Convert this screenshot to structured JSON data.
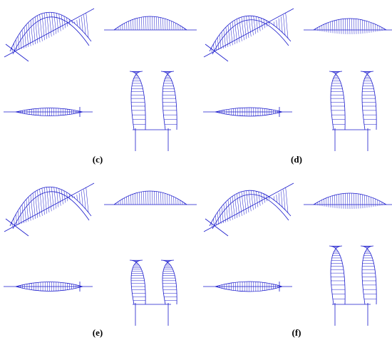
{
  "panels": [
    {
      "label": "(c)"
    },
    {
      "label": "(d)"
    },
    {
      "label": "(e)"
    },
    {
      "label": "(f)"
    }
  ]
}
